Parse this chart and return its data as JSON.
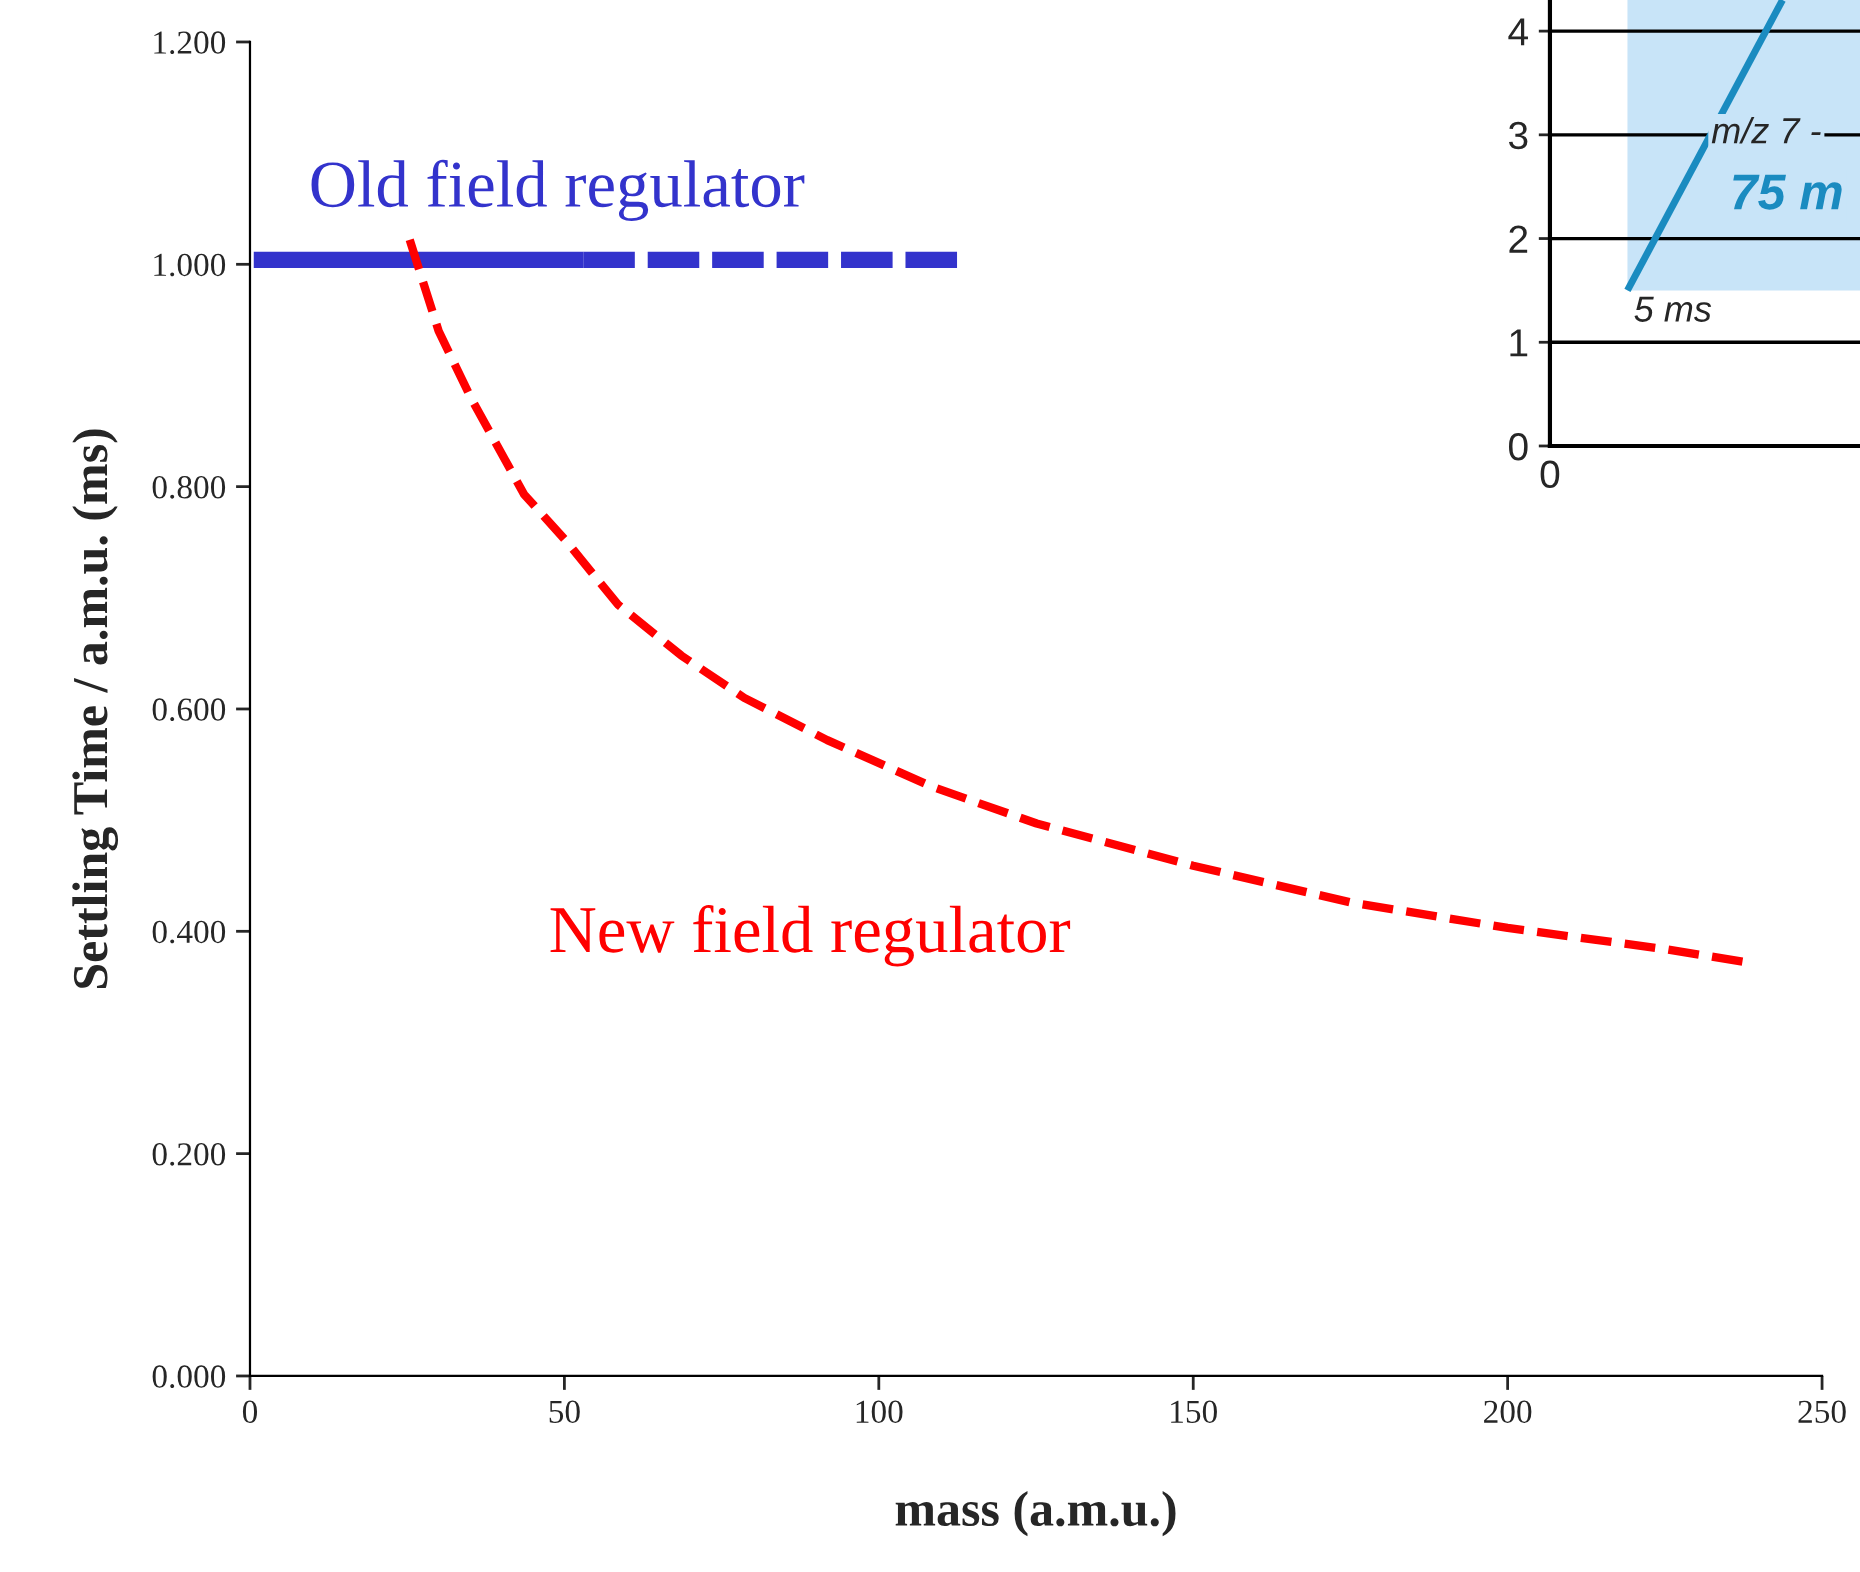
{
  "chart_data": [
    {
      "type": "line",
      "xlabel": "mass (a.m.u.)",
      "ylabel": "Settling Time / a.m.u. (ms)",
      "xlim": [
        0,
        250
      ],
      "xticks": [
        0,
        50,
        100,
        150,
        200,
        250
      ],
      "ylim": [
        0,
        1.2
      ],
      "yticks": [
        {
          "value": 0,
          "label": "0.000"
        },
        {
          "value": 0.2,
          "label": "0.200"
        },
        {
          "value": 0.4,
          "label": "0.400"
        },
        {
          "value": 0.6,
          "label": "0.600"
        },
        {
          "value": 0.8,
          "label": "0.800"
        },
        {
          "value": 1.0,
          "label": "1.000"
        },
        {
          "value": 1.2,
          "label": "1.200"
        }
      ],
      "grid": false,
      "legend": false,
      "series": [
        {
          "name": "Old field regulator",
          "color": "#3333cc",
          "line_style": "solid",
          "x": [
            0.6,
            53
          ],
          "values": [
            1.004,
            1.004
          ]
        },
        {
          "color": "#3333cc",
          "line_style": "dashed",
          "x": [
            53,
            113
          ],
          "values": [
            1.004,
            1.004
          ]
        },
        {
          "name": "New field regulator",
          "color": "#ff0000",
          "line_style": "dashed",
          "x": [
            25.4,
            30,
            35.3,
            43.6,
            50.3,
            58.5,
            68.6,
            78.6,
            91.8,
            108.5,
            125.1,
            150,
            175,
            200,
            225,
            238.2
          ],
          "values": [
            1.022,
            0.94,
            0.878,
            0.793,
            0.751,
            0.694,
            0.648,
            0.61,
            0.572,
            0.53,
            0.497,
            0.459,
            0.426,
            0.403,
            0.384,
            0.372
          ]
        }
      ]
    },
    {
      "type": "line",
      "categories": [
        null,
        null
      ],
      "ylim": [
        0,
        4.3
      ],
      "yticks": [
        0,
        1,
        2,
        3,
        4
      ],
      "grid": "y",
      "bands": [
        {
          "axis": "y",
          "from": 1.5,
          "to": 4.3,
          "color": "#c8e4f8"
        }
      ],
      "series": [
        {
          "color": "#1a8bc0",
          "values": [
            1.5,
            4.3
          ]
        }
      ],
      "annotations": [
        "m/z 7 -",
        "75 m",
        "5 ms",
        "0"
      ]
    }
  ]
}
